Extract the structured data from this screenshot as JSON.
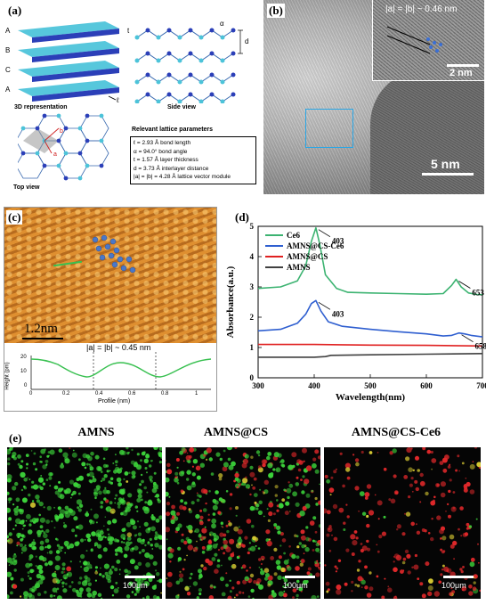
{
  "panel_a": {
    "label": "(a)",
    "layer_labels": [
      "A",
      "B",
      "C",
      "A"
    ],
    "caption_3d": "3D representation",
    "caption_side": "Side view",
    "caption_top": "Top view",
    "dim_t": "t",
    "dim_d": "d",
    "dim_alpha": "α",
    "dim_l": "ℓ",
    "vec_a": "a",
    "vec_b": "b",
    "params_title": "Relevant lattice parameters",
    "params": [
      "ℓ = 2.93 Å  bond length",
      "α = 94.0°  bond angle",
      "t = 1.57 Å  layer thickness",
      "d = 3.73 Å  interlayer distance",
      "|a| = |b| = 4.28 Å  lattice vector module"
    ]
  },
  "panel_b": {
    "label": "(b)",
    "inset_text": "|a| = |b| ~ 0.46 nm",
    "inset_scale": "2 nm",
    "scale": "5 nm"
  },
  "panel_c": {
    "label": "(c)",
    "scale": "1.2nm",
    "lattice_text": "|a| = |b| ~ 0.45 nm",
    "profile_xlabel": "Profile (nm)",
    "profile_ylabel": "Height (pm)",
    "profile_yticks": [
      "20",
      "10",
      "0"
    ],
    "profile_xticks": [
      "0",
      "0.2",
      "0.4",
      "0.6",
      "0.8",
      "1"
    ]
  },
  "chart_data": {
    "type": "line",
    "xlabel": "Wavelength(nm)",
    "ylabel": "Absorbance(a.u.)",
    "xlim": [
      300,
      700
    ],
    "ylim": [
      0,
      5
    ],
    "xticks": [
      "300",
      "400",
      "500",
      "600",
      "700"
    ],
    "yticks": [
      "0",
      "1",
      "2",
      "3",
      "4",
      "5"
    ],
    "legend_position": "top-left",
    "series": [
      {
        "name": "Ce6",
        "color": "#3cb371",
        "x": [
          300,
          340,
          370,
          385,
          395,
          403,
          410,
          420,
          440,
          460,
          500,
          550,
          600,
          630,
          645,
          653,
          662,
          675,
          690,
          700
        ],
        "y": [
          2.95,
          3.0,
          3.2,
          3.7,
          4.5,
          4.95,
          4.4,
          3.4,
          2.95,
          2.82,
          2.8,
          2.78,
          2.76,
          2.78,
          3.05,
          3.25,
          3.0,
          2.8,
          2.75,
          2.74
        ]
      },
      {
        "name": "AMNS@CS-Ce6",
        "color": "#2f5fd0",
        "x": [
          300,
          340,
          370,
          385,
          395,
          403,
          412,
          425,
          450,
          500,
          550,
          600,
          630,
          645,
          658,
          668,
          680,
          700
        ],
        "y": [
          1.55,
          1.6,
          1.8,
          2.1,
          2.45,
          2.55,
          2.2,
          1.85,
          1.7,
          1.6,
          1.52,
          1.45,
          1.38,
          1.4,
          1.48,
          1.45,
          1.4,
          1.35
        ]
      },
      {
        "name": "AMNS@CS",
        "color": "#e02020",
        "x": [
          300,
          400,
          500,
          600,
          700
        ],
        "y": [
          1.1,
          1.1,
          1.08,
          1.07,
          1.05
        ]
      },
      {
        "name": "AMNS",
        "color": "#404040",
        "x": [
          300,
          400,
          420,
          430,
          500,
          600,
          700
        ],
        "y": [
          0.68,
          0.68,
          0.7,
          0.74,
          0.76,
          0.78,
          0.8
        ]
      }
    ],
    "annotations": [
      {
        "text": "403",
        "x": 403,
        "y": 4.95
      },
      {
        "text": "403",
        "x": 403,
        "y": 2.55
      },
      {
        "text": "653",
        "x": 653,
        "y": 3.25
      },
      {
        "text": "658",
        "x": 658,
        "y": 1.48
      }
    ]
  },
  "panel_d": {
    "label": "(d)"
  },
  "panel_e": {
    "label": "(e)",
    "titles": [
      "AMNS",
      "AMNS@CS",
      "AMNS@CS-Ce6"
    ],
    "scale": "100μm"
  }
}
